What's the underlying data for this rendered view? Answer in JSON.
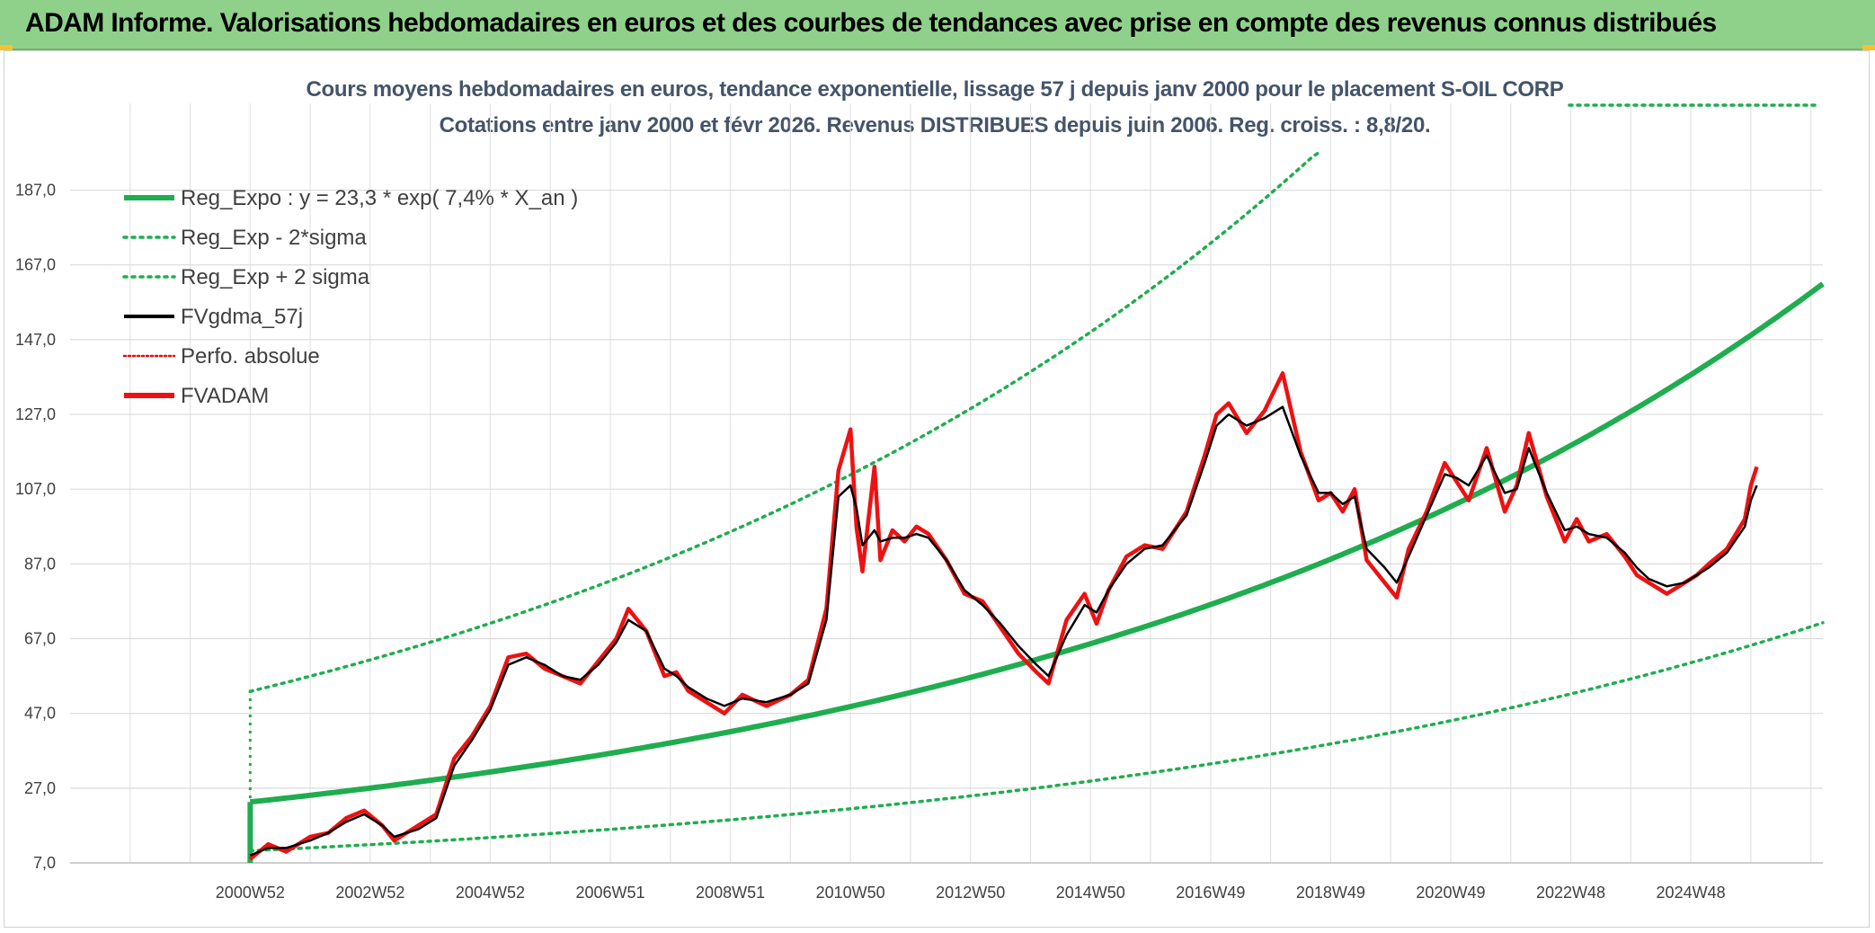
{
  "header": {
    "title": "ADAM Informe. Valorisations hebdomadaires en euros et des courbes de tendances avec prise en compte des revenus connus distribués"
  },
  "chart_data": {
    "type": "line",
    "title": "Cours moyens hebdomadaires en euros, tendance exponentielle, lissage 57 j depuis janv 2000 pour le placement S-OIL CORP",
    "subtitle": "Cotations entre janv 2000 et févr 2026. Revenus DISTRIBUES depuis juin 2006. Reg. croiss. : 8,8/20.",
    "xlabel": "",
    "ylabel": "",
    "xlim": [
      1998.0,
      2027.2
    ],
    "ylim": [
      7.0,
      197.0
    ],
    "y_ticks": [
      "7,0",
      "27,0",
      "47,0",
      "67,0",
      "87,0",
      "107,0",
      "127,0",
      "147,0",
      "167,0",
      "187,0"
    ],
    "y_tick_values": [
      7,
      27,
      47,
      67,
      87,
      107,
      127,
      147,
      167,
      187
    ],
    "x_ticks": [
      "2000W52",
      "2002W52",
      "2004W52",
      "2006W51",
      "2008W51",
      "2010W50",
      "2012W50",
      "2014W50",
      "2016W49",
      "2018W49",
      "2020W49",
      "2022W48",
      "2024W48"
    ],
    "x_tick_values": [
      2001,
      2003,
      2005,
      2007,
      2009,
      2011,
      2013,
      2015,
      2017,
      2019,
      2021,
      2023,
      2025
    ],
    "legend": [
      {
        "label": "Reg_Expo : y = 23,3 * exp( 7,4% *  X_an )",
        "color": "#1fad4f",
        "style": "solid-thick"
      },
      {
        "label": "Reg_Exp - 2*sigma",
        "color": "#1fad4f",
        "style": "dotted"
      },
      {
        "label": "Reg_Exp + 2 sigma",
        "color": "#1fad4f",
        "style": "dotted"
      },
      {
        "label": "FVgdma_57j",
        "color": "#000000",
        "style": "solid"
      },
      {
        "label": "Perfo. absolue",
        "color": "#e01010",
        "style": "dotted"
      },
      {
        "label": "FVADAM",
        "color": "#ee1111",
        "style": "solid-thick"
      }
    ],
    "regression": {
      "start_x": 2001.0,
      "end_x": 2027.2,
      "a": 23.3,
      "rate": 0.074,
      "lower_factor": 0.44,
      "upper_factor": 2.27
    },
    "series": [
      {
        "name": "FVADAM",
        "x": [
          2001.0,
          2001.3,
          2001.6,
          2002.0,
          2002.3,
          2002.6,
          2002.9,
          2003.2,
          2003.4,
          2003.8,
          2004.1,
          2004.4,
          2004.7,
          2005.0,
          2005.3,
          2005.6,
          2005.9,
          2006.2,
          2006.5,
          2006.8,
          2007.1,
          2007.3,
          2007.6,
          2007.9,
          2008.1,
          2008.3,
          2008.6,
          2008.9,
          2009.2,
          2009.6,
          2010.0,
          2010.3,
          2010.6,
          2010.8,
          2011.0,
          2011.1,
          2011.2,
          2011.4,
          2011.5,
          2011.7,
          2011.9,
          2012.1,
          2012.3,
          2012.6,
          2012.9,
          2013.2,
          2013.5,
          2013.8,
          2014.1,
          2014.3,
          2014.6,
          2014.9,
          2015.1,
          2015.3,
          2015.6,
          2015.9,
          2016.2,
          2016.6,
          2016.9,
          2017.1,
          2017.3,
          2017.6,
          2017.9,
          2018.2,
          2018.5,
          2018.8,
          2019.0,
          2019.2,
          2019.4,
          2019.6,
          2019.9,
          2020.1,
          2020.3,
          2020.6,
          2020.9,
          2021.1,
          2021.3,
          2021.6,
          2021.9,
          2022.1,
          2022.3,
          2022.6,
          2022.9,
          2023.1,
          2023.3,
          2023.6,
          2023.9,
          2024.1,
          2024.3,
          2024.6,
          2024.9,
          2025.1,
          2025.3,
          2025.6,
          2025.9,
          2026.0,
          2026.1
        ],
        "values": [
          8,
          12,
          10,
          14,
          15,
          19,
          21,
          17,
          13,
          17,
          20,
          35,
          41,
          49,
          62,
          63,
          59,
          57,
          55,
          61,
          67,
          75,
          69,
          57,
          58,
          53,
          50,
          47,
          52,
          49,
          52,
          56,
          75,
          112,
          123,
          97,
          85,
          113,
          88,
          96,
          93,
          97,
          95,
          88,
          79,
          77,
          70,
          63,
          58,
          55,
          72,
          79,
          71,
          80,
          89,
          92,
          91,
          101,
          116,
          127,
          130,
          122,
          128,
          138,
          117,
          104,
          106,
          101,
          107,
          88,
          82,
          78,
          91,
          101,
          114,
          109,
          104,
          118,
          101,
          108,
          122,
          105,
          93,
          99,
          93,
          95,
          89,
          84,
          82,
          79,
          82,
          84,
          87,
          91,
          99,
          108,
          113
        ]
      },
      {
        "name": "FVgdma_57j",
        "x": [
          2001.0,
          2001.3,
          2001.6,
          2002.0,
          2002.3,
          2002.6,
          2002.9,
          2003.2,
          2003.4,
          2003.8,
          2004.1,
          2004.4,
          2004.7,
          2005.0,
          2005.3,
          2005.6,
          2005.9,
          2006.2,
          2006.5,
          2006.8,
          2007.1,
          2007.3,
          2007.6,
          2007.9,
          2008.1,
          2008.3,
          2008.6,
          2008.9,
          2009.2,
          2009.6,
          2010.0,
          2010.3,
          2010.6,
          2010.8,
          2011.0,
          2011.1,
          2011.2,
          2011.4,
          2011.5,
          2011.7,
          2011.9,
          2012.1,
          2012.3,
          2012.6,
          2012.9,
          2013.2,
          2013.5,
          2013.8,
          2014.1,
          2014.3,
          2014.6,
          2014.9,
          2015.1,
          2015.3,
          2015.6,
          2015.9,
          2016.2,
          2016.6,
          2016.9,
          2017.1,
          2017.3,
          2017.6,
          2017.9,
          2018.2,
          2018.5,
          2018.8,
          2019.0,
          2019.2,
          2019.4,
          2019.6,
          2019.9,
          2020.1,
          2020.3,
          2020.6,
          2020.9,
          2021.1,
          2021.3,
          2021.6,
          2021.9,
          2022.1,
          2022.3,
          2022.6,
          2022.9,
          2023.1,
          2023.3,
          2023.6,
          2023.9,
          2024.1,
          2024.3,
          2024.6,
          2024.9,
          2025.1,
          2025.3,
          2025.6,
          2025.9,
          2026.0,
          2026.1
        ],
        "values": [
          9,
          11,
          11,
          13,
          15,
          18,
          20,
          17,
          14,
          16,
          19,
          33,
          40,
          48,
          60,
          62,
          60,
          57,
          56,
          60,
          66,
          72,
          69,
          59,
          57,
          54,
          51,
          49,
          51,
          50,
          52,
          55,
          72,
          105,
          108,
          102,
          92,
          96,
          93,
          94,
          94,
          95,
          94,
          88,
          80,
          76,
          71,
          65,
          60,
          57,
          68,
          76,
          74,
          80,
          87,
          91,
          92,
          100,
          114,
          124,
          127,
          124,
          126,
          129,
          116,
          106,
          106,
          103,
          105,
          91,
          86,
          82,
          89,
          100,
          111,
          110,
          108,
          116,
          106,
          107,
          118,
          106,
          96,
          97,
          95,
          94,
          90,
          86,
          83,
          81,
          82,
          84,
          86,
          90,
          97,
          104,
          108
        ]
      }
    ]
  }
}
